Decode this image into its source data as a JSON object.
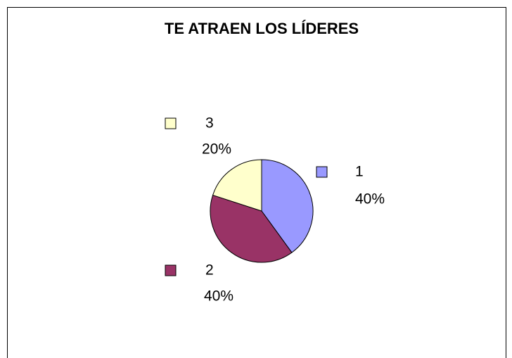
{
  "chart_data": {
    "type": "pie",
    "title": "TE ATRAEN LOS LÍDERES",
    "categories": [
      "1",
      "2",
      "3"
    ],
    "values": [
      40,
      40,
      20
    ],
    "value_labels": [
      "40%",
      "40%",
      "20%"
    ],
    "colors": [
      "#9999ff",
      "#993366",
      "#ffffcc"
    ]
  }
}
